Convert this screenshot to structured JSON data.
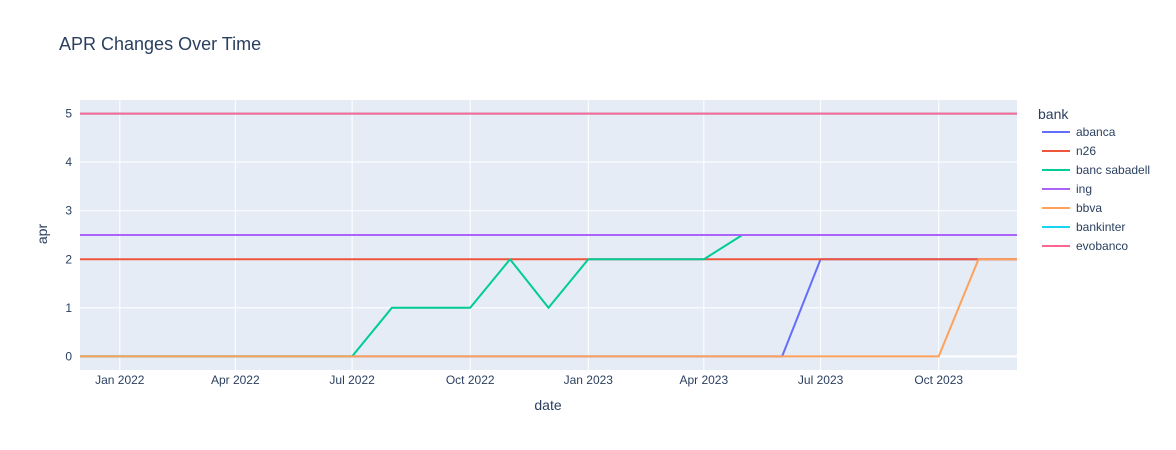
{
  "chart_data": {
    "type": "line",
    "title": "APR Changes Over Time",
    "xlabel": "date",
    "ylabel": "apr",
    "legend_title": "bank",
    "legend_position": "right",
    "x": [
      "2021-12-01",
      "2022-01-01",
      "2022-02-01",
      "2022-03-01",
      "2022-04-01",
      "2022-05-01",
      "2022-06-01",
      "2022-07-01",
      "2022-08-01",
      "2022-09-01",
      "2022-10-01",
      "2022-11-01",
      "2022-12-01",
      "2023-01-01",
      "2023-02-01",
      "2023-03-01",
      "2023-04-01",
      "2023-05-01",
      "2023-06-01",
      "2023-07-01",
      "2023-08-01",
      "2023-09-01",
      "2023-10-01",
      "2023-11-01",
      "2023-12-01"
    ],
    "xlim": [
      "2021-12-01",
      "2023-12-01"
    ],
    "x_ticks": [
      {
        "date": "2022-01-01",
        "label": "Jan 2022"
      },
      {
        "date": "2022-04-01",
        "label": "Apr 2022"
      },
      {
        "date": "2022-07-01",
        "label": "Jul 2022"
      },
      {
        "date": "2022-10-01",
        "label": "Oct 2022"
      },
      {
        "date": "2023-01-01",
        "label": "Jan 2023"
      },
      {
        "date": "2023-04-01",
        "label": "Apr 2023"
      },
      {
        "date": "2023-07-01",
        "label": "Jul 2023"
      },
      {
        "date": "2023-10-01",
        "label": "Oct 2023"
      }
    ],
    "ylim": [
      -0.28,
      5.28
    ],
    "y_ticks": [
      0,
      1,
      2,
      3,
      4,
      5
    ],
    "series": [
      {
        "name": "abanca",
        "color": "#636efa",
        "values": [
          0,
          0,
          0,
          0,
          0,
          0,
          0,
          0,
          0,
          0,
          0,
          0,
          0,
          0,
          0,
          0,
          0,
          0,
          0,
          2,
          2,
          2,
          2,
          2,
          2
        ]
      },
      {
        "name": "n26",
        "color": "#ef553b",
        "values": [
          2,
          2,
          2,
          2,
          2,
          2,
          2,
          2,
          2,
          2,
          2,
          2,
          2,
          2,
          2,
          2,
          2,
          2,
          2,
          2,
          2,
          2,
          2,
          2,
          2
        ]
      },
      {
        "name": "banc sabadell",
        "color": "#00cc96",
        "values": [
          0,
          0,
          0,
          0,
          0,
          0,
          0,
          0,
          1,
          1,
          1,
          2,
          1,
          2,
          2,
          2,
          2,
          2.5,
          null,
          null,
          null,
          null,
          null,
          null,
          null
        ]
      },
      {
        "name": "ing",
        "color": "#ab63fa",
        "values": [
          2.5,
          2.5,
          2.5,
          2.5,
          2.5,
          2.5,
          2.5,
          2.5,
          2.5,
          2.5,
          2.5,
          2.5,
          2.5,
          2.5,
          2.5,
          2.5,
          2.5,
          2.5,
          2.5,
          2.5,
          2.5,
          2.5,
          2.5,
          2.5,
          2.5
        ]
      },
      {
        "name": "bbva",
        "color": "#ffa15a",
        "values": [
          0,
          0,
          0,
          0,
          0,
          0,
          0,
          0,
          0,
          0,
          0,
          0,
          0,
          0,
          0,
          0,
          0,
          0,
          0,
          0,
          0,
          0,
          0,
          2,
          2
        ]
      },
      {
        "name": "bankinter",
        "color": "#19d3f3",
        "values": [
          5,
          5,
          5,
          5,
          5,
          5,
          5,
          5,
          5,
          5,
          5,
          5,
          5,
          5,
          5,
          5,
          5,
          5,
          5,
          5,
          5,
          5,
          5,
          5,
          5
        ]
      },
      {
        "name": "evobanco",
        "color": "#ff6692",
        "values": [
          5,
          5,
          5,
          5,
          5,
          5,
          5,
          5,
          5,
          5,
          5,
          5,
          5,
          5,
          5,
          5,
          5,
          5,
          5,
          5,
          5,
          5,
          5,
          5,
          5
        ]
      }
    ]
  },
  "colors": {
    "plot_background": "#e5ecf6",
    "grid": "#ffffff",
    "text": "#2a3f5f"
  }
}
